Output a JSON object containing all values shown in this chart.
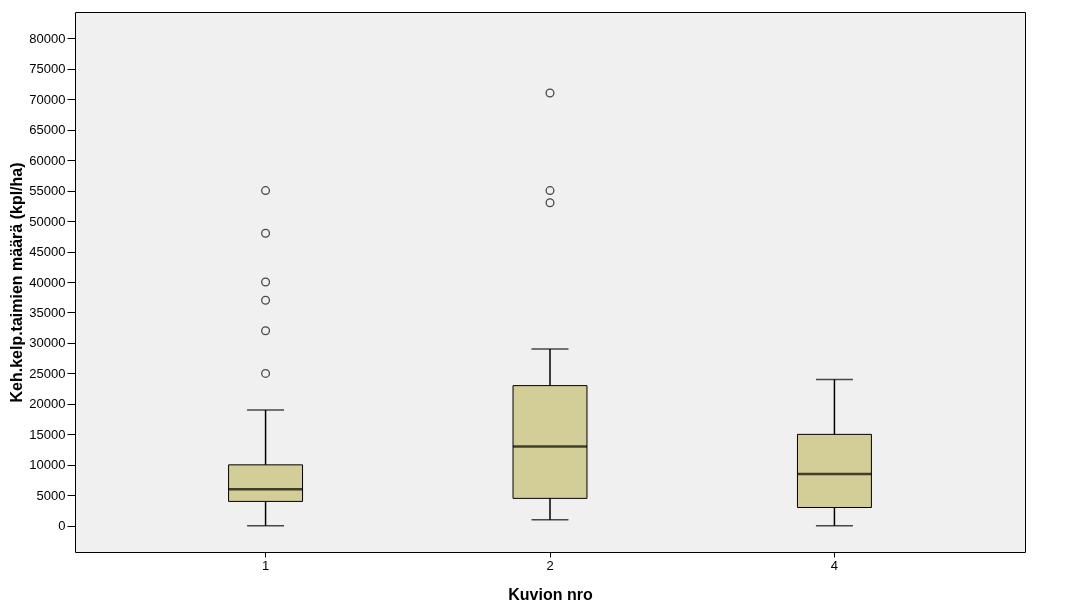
{
  "chart_data": {
    "type": "box",
    "xlabel": "Kuvion nro",
    "ylabel": "Keh.kelp.taimien määrä (kpl/ha)",
    "categories": [
      "1",
      "2",
      "4"
    ],
    "color": "#d3ce97",
    "boxes": [
      {
        "low": 0,
        "q1": 4000,
        "median": 6000,
        "q3": 10000,
        "high": 19000,
        "outliers": [
          25000,
          32000,
          37000,
          40000,
          48000,
          55000
        ]
      },
      {
        "low": 1000,
        "q1": 4500,
        "median": 13000,
        "q3": 23000,
        "high": 29000,
        "outliers": [
          53000,
          55000,
          71000
        ]
      },
      {
        "low": 0,
        "q1": 3000,
        "median": 8500,
        "q3": 15000,
        "high": 24000
      }
    ],
    "ylim": [
      -4300,
      84300
    ],
    "yticks": [
      0,
      5000,
      10000,
      15000,
      20000,
      25000,
      30000,
      35000,
      40000,
      45000,
      50000,
      55000,
      60000,
      65000,
      70000,
      75000,
      80000
    ]
  }
}
